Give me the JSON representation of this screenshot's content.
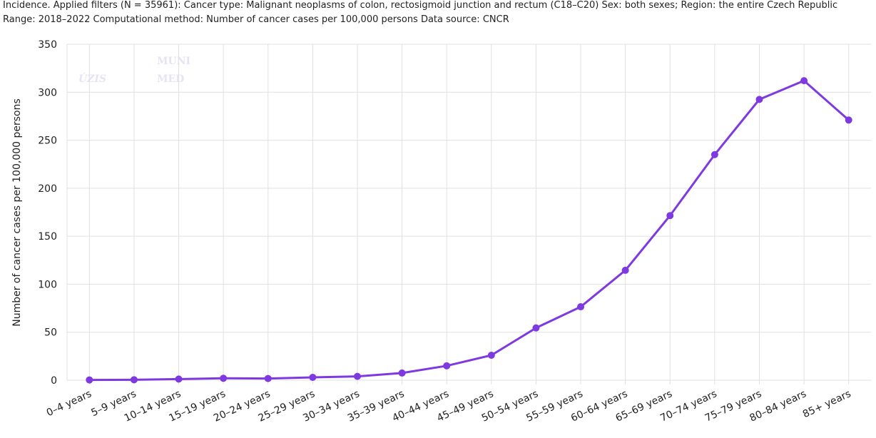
{
  "chart_data": {
    "type": "line",
    "title": "Incidence. Applied filters (N = 35961): Cancer type: Malignant neoplasms of colon, rectosigmoid junction and rectum (C18–C20) Sex: both sexes; Region: the entire Czech Republic",
    "subtitle": "Range: 2018–2022 Computational method: Number of cancer cases per 100,000 persons Data source: CNCR",
    "watermarks": [
      "ÚZIS",
      "MUNI",
      "MED"
    ],
    "y_label": "Number of cancer cases per 100,000 persons",
    "categories": [
      "0–4 years",
      "5–9 years",
      "10–14 years",
      "15–19 years",
      "20–24 years",
      "25–29 years",
      "30–34 years",
      "35–39 years",
      "40–44 years",
      "45–49 years",
      "50–54 years",
      "55–59 years",
      "60–64 years",
      "65–69 years",
      "70–74 years",
      "75–79 years",
      "80–84 years",
      "85+ years"
    ],
    "series": [
      {
        "name": "Incidence",
        "color": "#7e3ae0",
        "values": [
          0.3,
          0.5,
          1.2,
          2,
          1.8,
          3,
          4,
          7.5,
          15,
          26,
          54.5,
          76.5,
          114.5,
          171.5,
          235,
          292.5,
          312,
          271
        ]
      }
    ],
    "ylim": [
      0,
      350
    ],
    "yticks": [
      0,
      50,
      100,
      150,
      200,
      250,
      300,
      350
    ],
    "grid": true
  }
}
